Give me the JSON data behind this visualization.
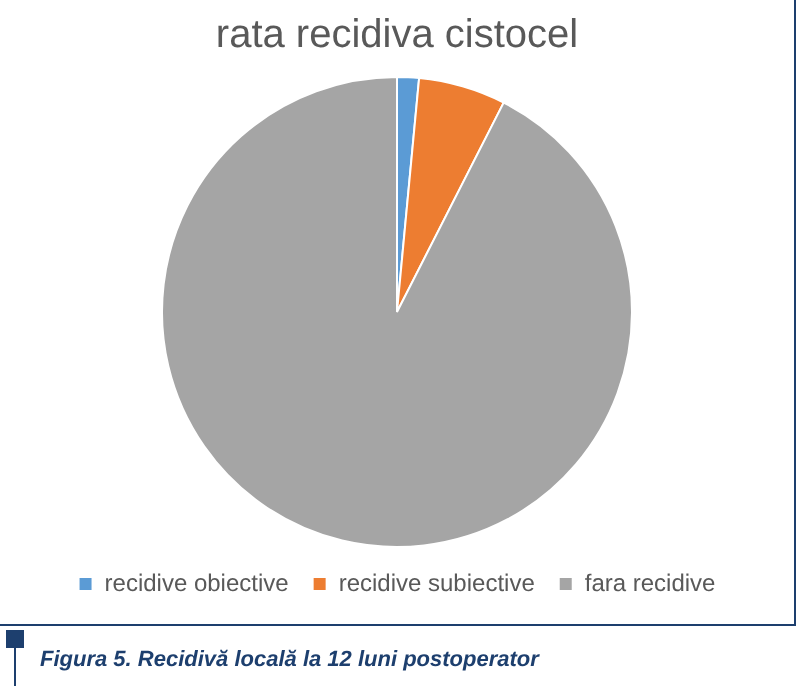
{
  "chart_data": {
    "type": "pie",
    "title": "rata recidiva cistocel",
    "categories": [
      "recidive obiective",
      "recidive subiective",
      "fara recidive"
    ],
    "values": [
      1.5,
      6,
      92.5
    ],
    "colors": [
      "#5b9bd5",
      "#ed7d31",
      "#a5a5a5"
    ],
    "legend": "bottom",
    "annotations": [
      "Figura 5. Recidivă locală la 12 luni postoperator"
    ]
  }
}
